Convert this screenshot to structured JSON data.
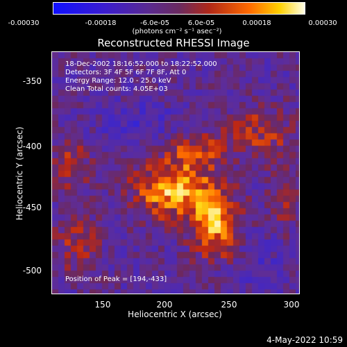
{
  "colorbar": {
    "ticks": [
      "-0.00030",
      "-0.00018",
      "-6.0e-05",
      "6.0e-05",
      "0.00018",
      "0.00030"
    ],
    "units": "(photons cm⁻² s⁻¹ asec⁻²)"
  },
  "title": "Reconstructed RHESSI Image",
  "annotations": {
    "time": "18-Dec-2002 18:16:52.000 to 18:22:52.000",
    "detectors": "Detectors: 3F 4F 5F 6F 7F 8F, Att 0",
    "energy": "Energy Range: 12.0 - 25.0 keV",
    "clean": "Clean     Total counts: 4.05E+03",
    "peak": "Position of Peak = [194,-433]"
  },
  "axes": {
    "xlabel": "Heliocentric X (arcsec)",
    "ylabel": "Heliocentric Y (arcsec)",
    "xticks": [
      "150",
      "200",
      "250",
      "300"
    ],
    "yticks": [
      "-350",
      "-400",
      "-450",
      "-500"
    ]
  },
  "timestamp": "4-May-2022 10:59"
}
